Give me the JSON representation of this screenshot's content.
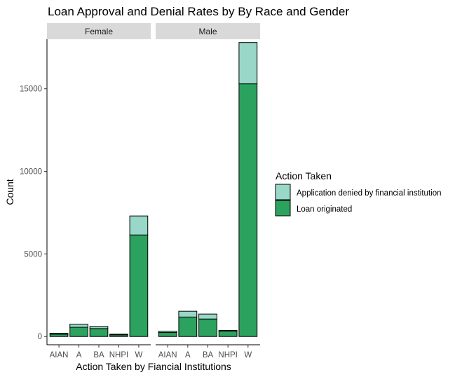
{
  "chart_data": {
    "type": "bar",
    "stacked": true,
    "title": "Loan Approval and Denial Rates by By Race and Gender",
    "xlabel": "Action Taken by Fiancial Institutions",
    "ylabel": "Count",
    "categories": [
      "AIAN",
      "A",
      "BA",
      "NHPI",
      "W"
    ],
    "ylim": [
      -500,
      18000
    ],
    "yticks": [
      0,
      5000,
      10000,
      15000
    ],
    "ytick_labels": [
      "0",
      "5000",
      "10000",
      "15000"
    ],
    "facets": [
      {
        "name": "Female",
        "series": [
          {
            "name": "Loan originated",
            "values": [
              140,
              560,
              480,
              100,
              6150
            ],
            "color": "#2ca25f"
          },
          {
            "name": "Application denied by financial institution",
            "values": [
              60,
              190,
              130,
              40,
              1150
            ],
            "color": "#99d8c9"
          }
        ]
      },
      {
        "name": "Male",
        "series": [
          {
            "name": "Loan originated",
            "values": [
              240,
              1180,
              1060,
              330,
              15300
            ],
            "color": "#2ca25f"
          },
          {
            "name": "Application denied by financial institution",
            "values": [
              80,
              350,
              300,
              40,
              2500
            ],
            "color": "#99d8c9"
          }
        ]
      }
    ],
    "legend": {
      "title": "Action Taken",
      "placement": "right",
      "entries": [
        {
          "label": "Application denied by financial institution",
          "color": "#99d8c9"
        },
        {
          "label": "Loan originated",
          "color": "#2ca25f"
        }
      ]
    },
    "grid": false
  }
}
